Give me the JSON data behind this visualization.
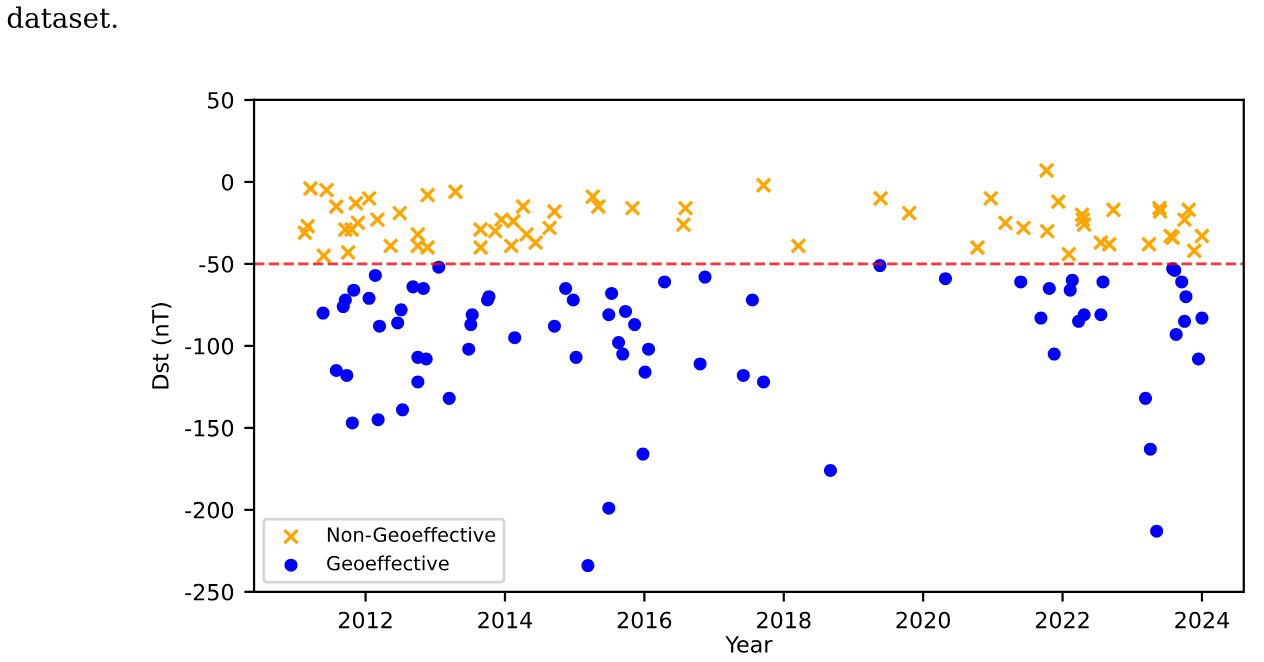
{
  "chart_data": {
    "type": "scatter",
    "xlabel": "Year",
    "ylabel": "Dst (nT)",
    "annotations": [
      "dataset."
    ],
    "xlim": [
      2010.4,
      2024.6
    ],
    "xticks": [
      2012,
      2014,
      2016,
      2018,
      2020,
      2022,
      2024
    ],
    "ylim": [
      -250,
      50
    ],
    "yticks": [
      -250,
      -200,
      -150,
      -100,
      -50,
      0,
      50
    ],
    "grid": false,
    "legend": "bottom left",
    "ref_lines": [
      {
        "axis": "y",
        "value": -50,
        "color": "#ff0000",
        "line_style": "dashed"
      }
    ],
    "series": [
      {
        "name": "Non-Geoeffective",
        "color": "#ffa500",
        "marker": "cross",
        "x": [
          2011.13,
          2011.17,
          2011.21,
          2011.4,
          2011.44,
          2011.58,
          2011.71,
          2011.75,
          2011.8,
          2011.86,
          2011.89,
          2012.05,
          2012.17,
          2012.36,
          2012.49,
          2012.75,
          2012.75,
          2012.89,
          2012.89,
          2013.29,
          2013.65,
          2013.65,
          2013.86,
          2013.95,
          2014.09,
          2014.12,
          2014.26,
          2014.31,
          2014.44,
          2014.64,
          2014.71,
          2015.26,
          2015.34,
          2015.83,
          2016.59,
          2016.56,
          2017.71,
          2018.21,
          2019.39,
          2019.8,
          2020.78,
          2020.97,
          2021.18,
          2021.44,
          2021.77,
          2021.78,
          2021.94,
          2022.09,
          2022.28,
          2022.29,
          2022.31,
          2022.55,
          2022.67,
          2022.73,
          2023.24,
          2023.39,
          2023.4,
          2023.55,
          2023.58,
          2023.75,
          2023.81,
          2023.89,
          2024.0
        ],
        "values": [
          -31,
          -27,
          -4,
          -45,
          -5,
          -15,
          -29,
          -43,
          -29,
          -13,
          -25,
          -10,
          -23,
          -39,
          -19,
          -32,
          -39,
          -40,
          -8,
          -6,
          -29,
          -40,
          -30,
          -23,
          -39,
          -24,
          -15,
          -32,
          -37,
          -28,
          -18,
          -9,
          -15,
          -16,
          -16,
          -26,
          -2,
          -39,
          -10,
          -19,
          -40,
          -10,
          -25,
          -28,
          7,
          -30,
          -12,
          -44,
          -20,
          -23,
          -26,
          -37,
          -38,
          -17,
          -38,
          -16,
          -18,
          -33,
          -34,
          -23,
          -17,
          -42,
          -33
        ]
      },
      {
        "name": "Geoeffective",
        "color": "#0000ff",
        "marker": "circle",
        "x": [
          2011.39,
          2011.58,
          2011.68,
          2011.71,
          2011.73,
          2011.81,
          2011.83,
          2012.05,
          2012.14,
          2012.18,
          2012.2,
          2012.46,
          2012.51,
          2012.53,
          2012.68,
          2012.75,
          2012.75,
          2012.83,
          2012.87,
          2013.05,
          2013.2,
          2013.48,
          2013.51,
          2013.53,
          2013.75,
          2013.77,
          2014.14,
          2014.71,
          2014.87,
          2014.98,
          2015.02,
          2015.19,
          2015.49,
          2015.49,
          2015.53,
          2015.63,
          2015.69,
          2015.73,
          2015.86,
          2015.98,
          2016.01,
          2016.06,
          2016.29,
          2016.8,
          2016.87,
          2017.42,
          2017.55,
          2017.71,
          2018.67,
          2019.38,
          2020.32,
          2021.4,
          2021.69,
          2021.81,
          2021.88,
          2022.11,
          2022.14,
          2022.23,
          2022.31,
          2022.55,
          2022.58,
          2023.19,
          2023.26,
          2023.35,
          2023.58,
          2023.61,
          2023.63,
          2023.71,
          2023.75,
          2023.77,
          2023.95,
          2024.0
        ],
        "values": [
          -80,
          -115,
          -76,
          -72,
          -118,
          -147,
          -66,
          -71,
          -57,
          -145,
          -88,
          -86,
          -78,
          -139,
          -64,
          -122,
          -107,
          -65,
          -108,
          -52,
          -132,
          -102,
          -87,
          -81,
          -72,
          -70,
          -95,
          -88,
          -65,
          -72,
          -107,
          -234,
          -81,
          -199,
          -68,
          -98,
          -105,
          -79,
          -87,
          -166,
          -116,
          -102,
          -61,
          -111,
          -58,
          -118,
          -72,
          -122,
          -176,
          -51,
          -59,
          -61,
          -83,
          -65,
          -105,
          -66,
          -60,
          -85,
          -81,
          -81,
          -61,
          -132,
          -163,
          -213,
          -53,
          -54,
          -93,
          -61,
          -85,
          -70,
          -108,
          -83
        ]
      }
    ]
  }
}
